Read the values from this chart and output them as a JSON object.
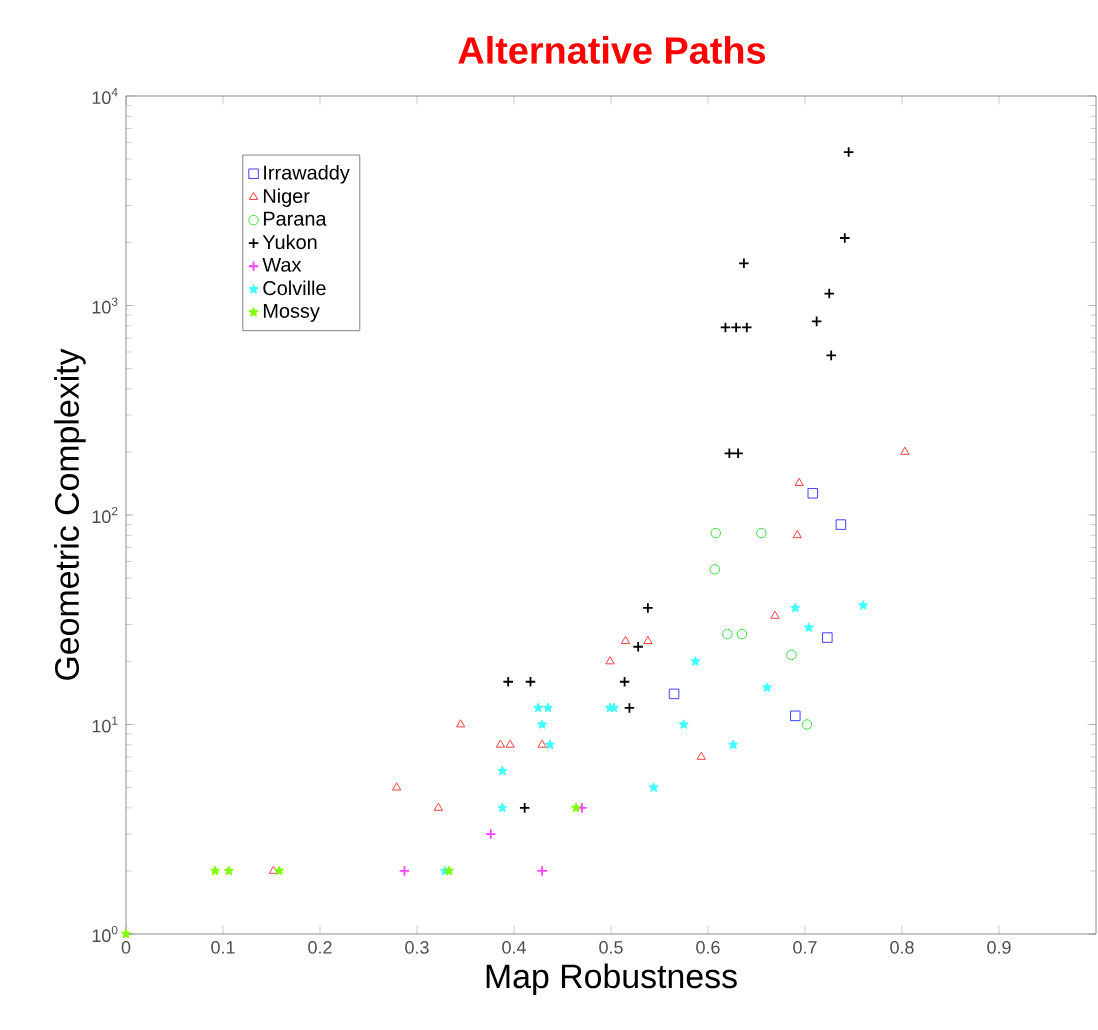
{
  "chart_data": {
    "type": "scatter",
    "title": "Alternative Paths",
    "xlabel": "Map Robustness",
    "ylabel": "Geometric Complexity",
    "log": "y",
    "xlim": [
      0,
      1
    ],
    "ylim": [
      1,
      10000
    ],
    "xticks": [
      0,
      0.1,
      0.2,
      0.3,
      0.4,
      0.5,
      0.6,
      0.7,
      0.8,
      0.9
    ],
    "yticks": [
      {
        "value": 1,
        "label": "10$^{0}$"
      },
      {
        "value": 10,
        "label": "10$^{1}$"
      },
      {
        "value": 100,
        "label": "10$^{2}$"
      },
      {
        "value": 1000,
        "label": "10$^{3}$"
      },
      {
        "value": 10000,
        "label": "10$^{4}$"
      }
    ],
    "legend": "top left",
    "grid": false,
    "series": [
      {
        "name": "Irrawaddy",
        "color": "#4040ff",
        "marker": "square",
        "x": [
          0.565,
          0.69,
          0.723,
          0.737,
          0.708
        ],
        "values": [
          14,
          11,
          26,
          90,
          127
        ]
      },
      {
        "name": "Niger",
        "color": "#ff4040",
        "marker": "triangle",
        "x": [
          0.345,
          0.386,
          0.396,
          0.429,
          0.279,
          0.322,
          0.152,
          0.669,
          0.515,
          0.538,
          0.499,
          0.593,
          0.803,
          0.694,
          0.692
        ],
        "values": [
          10,
          8,
          8,
          8,
          5,
          4,
          2,
          33,
          25,
          25,
          20,
          7,
          200,
          142,
          80
        ]
      },
      {
        "name": "Parana",
        "color": "#40e040",
        "marker": "circle",
        "x": [
          0.608,
          0.655,
          0.607,
          0.62,
          0.635,
          0.686,
          0.702
        ],
        "values": [
          82,
          82,
          55,
          27,
          27,
          21.5,
          10
        ]
      },
      {
        "name": "Yukon",
        "color": "#000000",
        "marker": "cross",
        "x": [
          0.745,
          0.741,
          0.637,
          0.725,
          0.712,
          0.727,
          0.618,
          0.629,
          0.64,
          0.622,
          0.631,
          0.538,
          0.528,
          0.514,
          0.519,
          0.394,
          0.417,
          0.411
        ],
        "values": [
          5400,
          2100,
          1590,
          1140,
          840,
          578,
          786,
          786,
          786,
          197,
          197,
          36,
          23.5,
          16,
          12,
          16,
          16,
          4
        ]
      },
      {
        "name": "Wax",
        "color": "#ff40ff",
        "marker": "cross",
        "x": [
          0.376,
          0.287,
          0.429,
          0.47
        ],
        "values": [
          3,
          2,
          2,
          4
        ]
      },
      {
        "name": "Colville",
        "color": "#40ffff",
        "marker": "star",
        "x": [
          0.429,
          0.437,
          0.388,
          0.388,
          0.329,
          0.425,
          0.435,
          0.69,
          0.76,
          0.704,
          0.587,
          0.499,
          0.503,
          0.661,
          0.575,
          0.626,
          0.544
        ],
        "values": [
          10,
          8,
          6,
          4,
          2,
          12,
          12,
          36,
          37,
          29,
          20,
          12,
          12,
          15,
          10,
          8,
          5
        ]
      },
      {
        "name": "Mossy",
        "color": "#80ff00",
        "marker": "star",
        "x": [
          0.092,
          0.106,
          0.158,
          0.333,
          0.464,
          0
        ],
        "values": [
          2,
          2,
          2,
          2,
          4,
          1
        ]
      }
    ]
  }
}
